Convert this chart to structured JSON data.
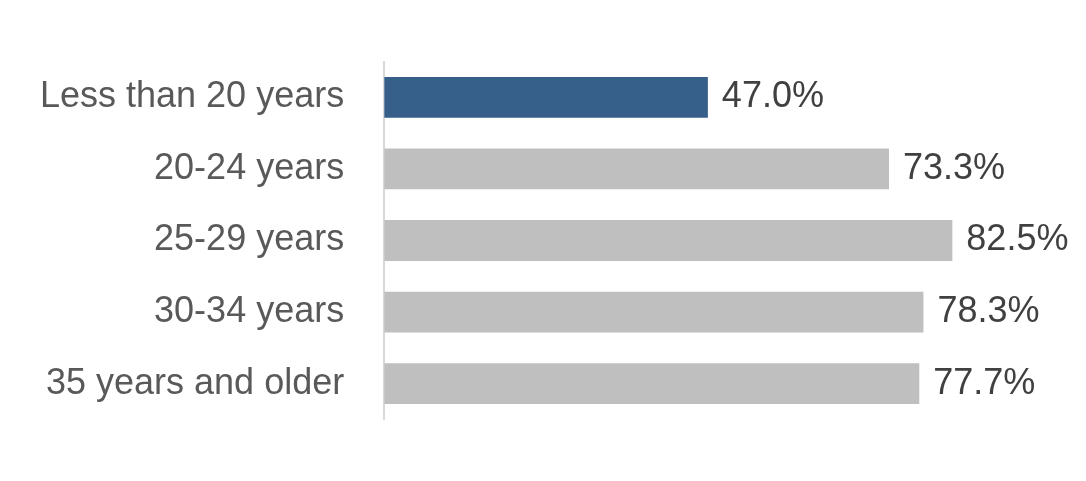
{
  "chart_data": {
    "type": "bar",
    "orientation": "horizontal",
    "categories": [
      "Less than 20 years",
      "20-24 years",
      "25-29 years",
      "30-34 years",
      "35 years and older"
    ],
    "values": [
      47.0,
      73.3,
      82.5,
      78.3,
      77.7
    ],
    "colors": [
      "#365f8a",
      "#bfbfbf",
      "#bfbfbf",
      "#bfbfbf",
      "#bfbfbf"
    ],
    "value_labels": [
      "47.0%",
      "73.3%",
      "82.5%",
      "78.3%",
      "77.7%"
    ],
    "legend": false
  }
}
